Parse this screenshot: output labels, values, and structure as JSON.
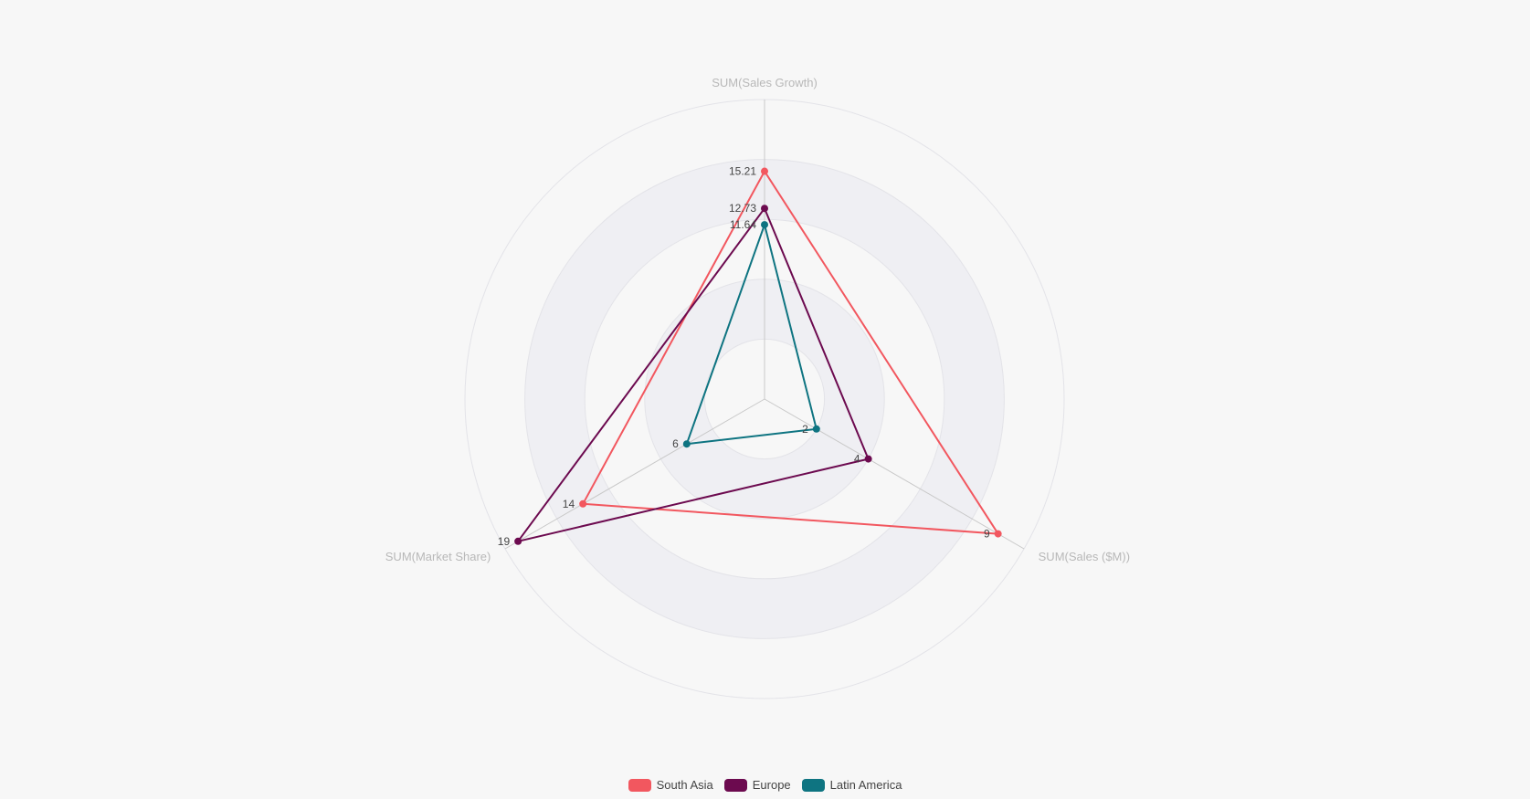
{
  "chart_data": {
    "type": "radar",
    "title": "",
    "indicators": [
      {
        "name": "SUM(Sales Growth)",
        "max": 20
      },
      {
        "name": "SUM(Sales ($M))",
        "max": 10
      },
      {
        "name": "SUM(Market Share)",
        "max": 20
      }
    ],
    "series": [
      {
        "name": "South Asia",
        "values": [
          15.21,
          9,
          14
        ],
        "color": "#f2575f"
      },
      {
        "name": "Europe",
        "values": [
          12.73,
          4,
          19
        ],
        "color": "#6c0a4f"
      },
      {
        "name": "Latin America",
        "values": [
          11.64,
          2,
          6
        ],
        "color": "#0e7481"
      }
    ],
    "legend_position": "bottom",
    "split_rings": 5
  }
}
